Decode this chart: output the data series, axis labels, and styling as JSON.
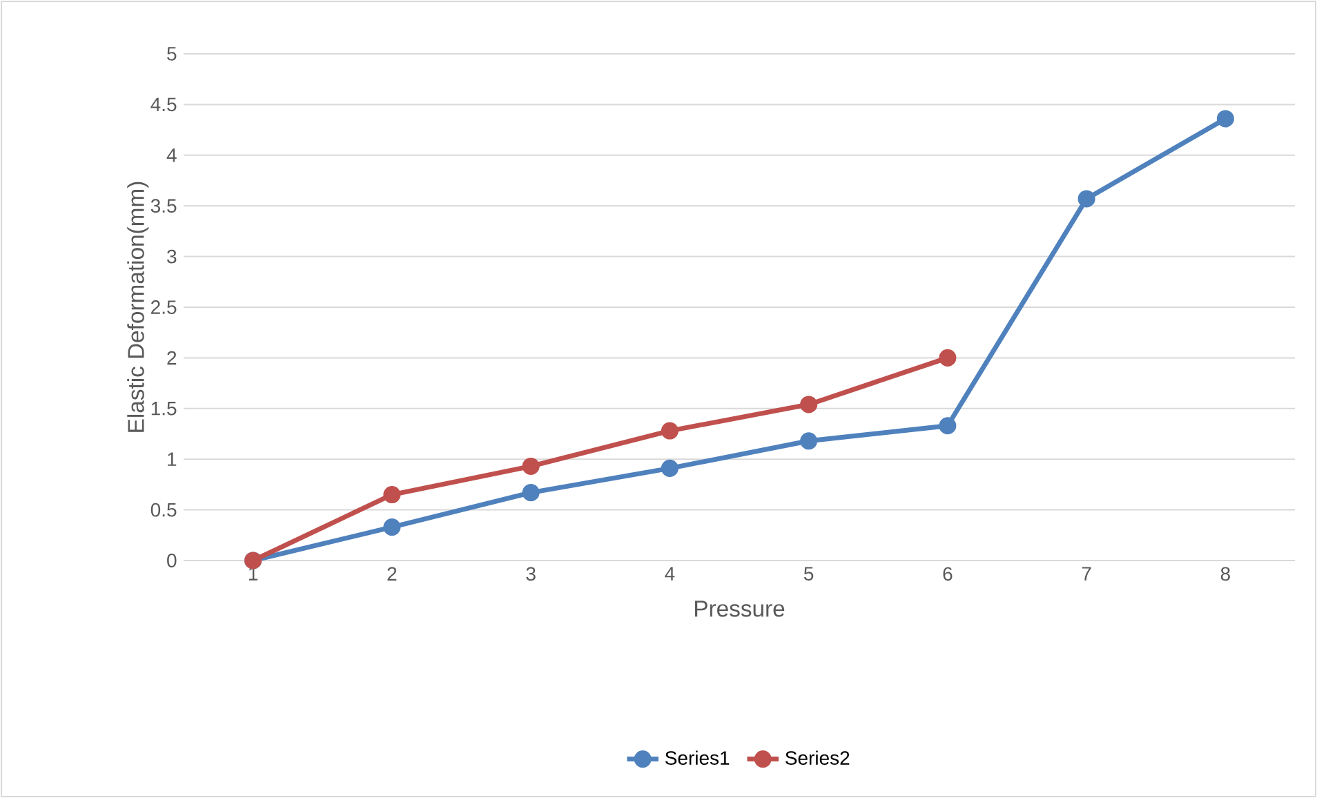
{
  "chart_data": {
    "type": "line",
    "xlabel": "Pressure",
    "ylabel": "Elastic Deformation(mm)",
    "categories": [
      "1",
      "2",
      "3",
      "4",
      "5",
      "6",
      "7",
      "8"
    ],
    "series": [
      {
        "name": "Series1",
        "color": "#4f81bd",
        "values": [
          0,
          0.33,
          0.67,
          0.91,
          1.18,
          1.33,
          3.57,
          4.36
        ]
      },
      {
        "name": "Series2",
        "color": "#c0504d",
        "values": [
          0,
          0.65,
          0.93,
          1.28,
          1.54,
          2.0,
          null,
          null
        ]
      }
    ],
    "ylim": [
      0,
      5
    ],
    "yticks": [
      0,
      0.5,
      1,
      1.5,
      2,
      2.5,
      3,
      3.5,
      4,
      4.5,
      5
    ],
    "grid": "y",
    "legend": "bottom",
    "marker": "circle",
    "line_style": "solid"
  }
}
